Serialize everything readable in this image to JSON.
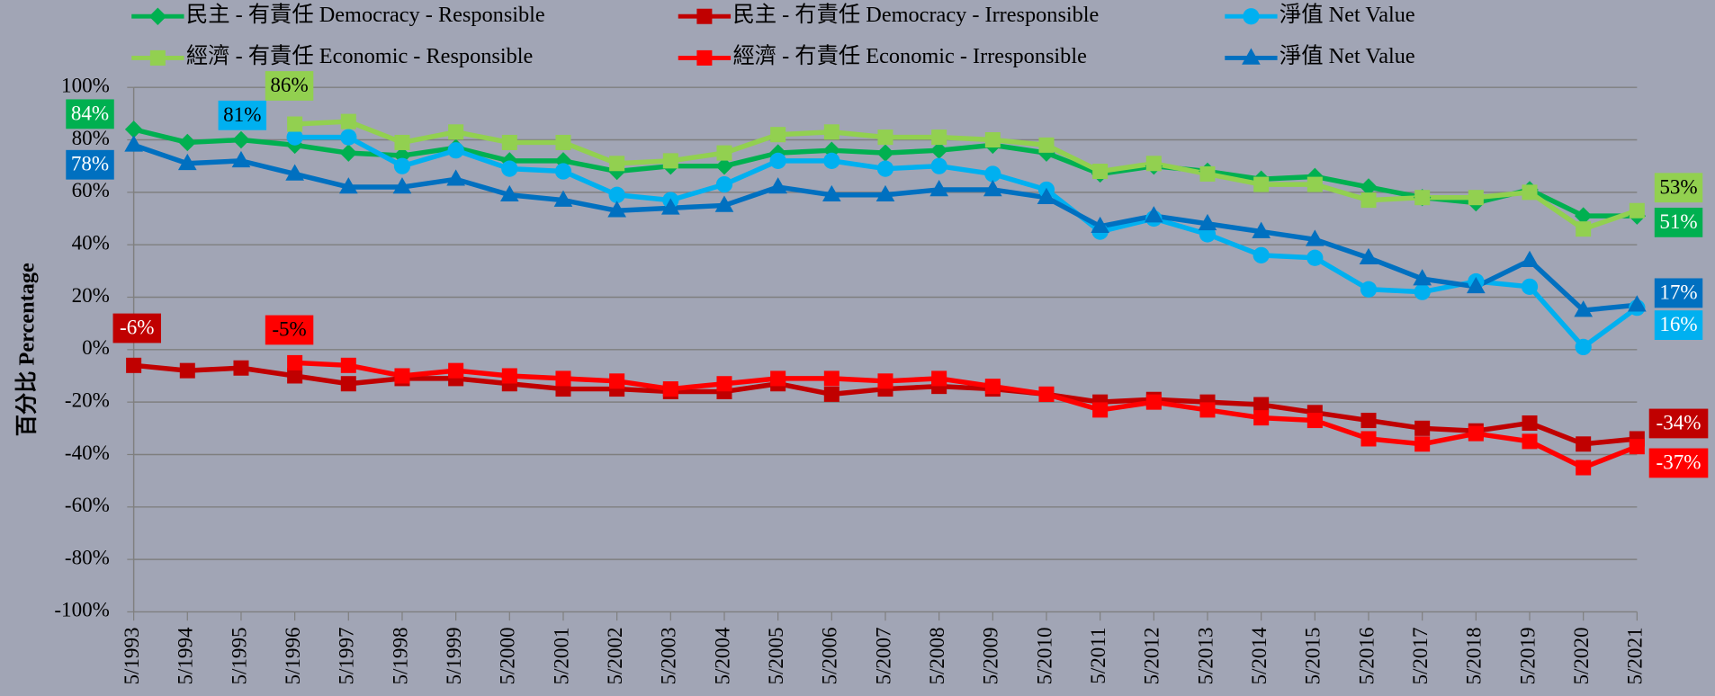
{
  "chart_data": {
    "type": "line",
    "y_axis_label": "百分比 Percentage",
    "categories": [
      "5/1993",
      "5/1994",
      "5/1995",
      "5/1996",
      "5/1997",
      "5/1998",
      "5/1999",
      "5/2000",
      "5/2001",
      "5/2002",
      "5/2003",
      "5/2004",
      "5/2005",
      "5/2006",
      "5/2007",
      "5/2008",
      "5/2009",
      "5/2010",
      "5/2011",
      "5/2012",
      "5/2013",
      "5/2014",
      "5/2015",
      "5/2016",
      "5/2017",
      "5/2018",
      "5/2019",
      "5/2020",
      "5/2021"
    ],
    "ylim": [
      -100,
      100
    ],
    "yticks": [
      {
        "value": 100,
        "label": "100%"
      },
      {
        "value": 80,
        "label": "80%"
      },
      {
        "value": 60,
        "label": "60%"
      },
      {
        "value": 40,
        "label": "40%"
      },
      {
        "value": 20,
        "label": "20%"
      },
      {
        "value": 0,
        "label": "0%"
      },
      {
        "value": -20,
        "label": "-20%"
      },
      {
        "value": -40,
        "label": "-40%"
      },
      {
        "value": -60,
        "label": "-60%"
      },
      {
        "value": -80,
        "label": "-80%"
      },
      {
        "value": -100,
        "label": "-100%"
      }
    ],
    "grid": true,
    "legend": "top",
    "series": [
      {
        "name": "民主 - 有責任 Democracy - Responsible",
        "color": "#00b050",
        "marker": "diamond",
        "values": [
          84,
          79,
          80,
          78,
          75,
          74,
          77,
          72,
          72,
          68,
          70,
          70,
          75,
          76,
          75,
          76,
          78,
          75,
          67,
          70,
          68,
          65,
          66,
          62,
          58,
          56,
          61,
          51,
          51
        ],
        "value_labels": [
          "84%",
          null,
          null,
          null,
          null,
          null,
          null,
          null,
          null,
          null,
          null,
          null,
          null,
          null,
          null,
          null,
          null,
          null,
          null,
          null,
          null,
          null,
          null,
          null,
          null,
          null,
          null,
          null,
          "51%"
        ]
      },
      {
        "name": "民主 - 冇責任 Democracy - Irresponsible",
        "color": "#c00000",
        "marker": "square",
        "values": [
          -6,
          -8,
          -7,
          -10,
          -13,
          -11,
          -11,
          -13,
          -15,
          -15,
          -16,
          -16,
          -13,
          -17,
          -15,
          -14,
          -15,
          -17,
          -20,
          -19,
          -20,
          -21,
          -24,
          -27,
          -30,
          -31,
          -28,
          -36,
          -34
        ],
        "value_labels": [
          "-6%",
          null,
          null,
          null,
          null,
          null,
          null,
          null,
          null,
          null,
          null,
          null,
          null,
          null,
          null,
          null,
          null,
          null,
          null,
          null,
          null,
          null,
          null,
          null,
          null,
          null,
          null,
          null,
          "-34%"
        ]
      },
      {
        "name": "淨值 Net Value",
        "color": "#00b0f0",
        "marker": "circle",
        "values": [
          null,
          null,
          null,
          81,
          81,
          70,
          76,
          69,
          68,
          59,
          57,
          63,
          72,
          72,
          69,
          70,
          67,
          61,
          45,
          50,
          44,
          36,
          35,
          23,
          22,
          26,
          24,
          1,
          16
        ],
        "value_labels": [
          null,
          null,
          null,
          "81%",
          null,
          null,
          null,
          null,
          null,
          null,
          null,
          null,
          null,
          null,
          null,
          null,
          null,
          null,
          null,
          null,
          null,
          null,
          null,
          null,
          null,
          null,
          null,
          null,
          "16%"
        ]
      },
      {
        "name": "經濟 - 有責任 Economic - Responsible",
        "color": "#92d050",
        "marker": "square",
        "values": [
          null,
          null,
          null,
          86,
          87,
          79,
          83,
          79,
          79,
          71,
          72,
          75,
          82,
          83,
          81,
          81,
          80,
          78,
          68,
          71,
          67,
          63,
          63,
          57,
          58,
          58,
          60,
          46,
          53
        ],
        "value_labels": [
          null,
          null,
          null,
          "86%",
          null,
          null,
          null,
          null,
          null,
          null,
          null,
          null,
          null,
          null,
          null,
          null,
          null,
          null,
          null,
          null,
          null,
          null,
          null,
          null,
          null,
          null,
          null,
          null,
          "53%"
        ]
      },
      {
        "name": "經濟 - 冇責任 Economic - Irresponsible",
        "color": "#ff0000",
        "marker": "square",
        "values": [
          null,
          null,
          null,
          -5,
          -6,
          -10,
          -8,
          -10,
          -11,
          -12,
          -15,
          -13,
          -11,
          -11,
          -12,
          -11,
          -14,
          -17,
          -23,
          -20,
          -23,
          -26,
          -27,
          -34,
          -36,
          -32,
          -35,
          -45,
          -37
        ],
        "value_labels": [
          null,
          null,
          null,
          "-5%",
          null,
          null,
          null,
          null,
          null,
          null,
          null,
          null,
          null,
          null,
          null,
          null,
          null,
          null,
          null,
          null,
          null,
          null,
          null,
          null,
          null,
          null,
          null,
          null,
          "-37%"
        ]
      },
      {
        "name": "淨值 Net Value",
        "color": "#0070c0",
        "marker": "triangle",
        "values": [
          78,
          71,
          72,
          67,
          62,
          62,
          65,
          59,
          57,
          53,
          54,
          55,
          62,
          59,
          59,
          61,
          61,
          58,
          47,
          51,
          48,
          45,
          42,
          35,
          27,
          24,
          34,
          15,
          17
        ],
        "value_labels": [
          "78%",
          null,
          null,
          null,
          null,
          null,
          null,
          null,
          null,
          null,
          null,
          null,
          null,
          null,
          null,
          null,
          null,
          null,
          null,
          null,
          null,
          null,
          null,
          null,
          null,
          null,
          null,
          null,
          "17%"
        ]
      }
    ]
  }
}
